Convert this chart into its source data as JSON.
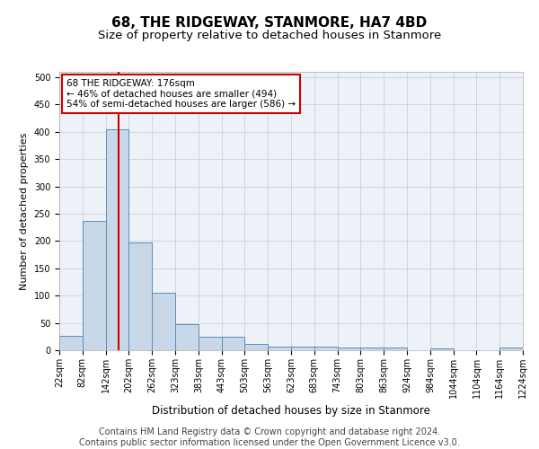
{
  "title": "68, THE RIDGEWAY, STANMORE, HA7 4BD",
  "subtitle": "Size of property relative to detached houses in Stanmore",
  "xlabel": "Distribution of detached houses by size in Stanmore",
  "ylabel": "Number of detached properties",
  "bar_color": "#c8d8e8",
  "bar_edge_color": "#5b8db8",
  "background_color": "#edf2f8",
  "grid_color": "#c8c8d0",
  "red_line_color": "#cc0000",
  "annotation_text_line1": "68 THE RIDGEWAY: 176sqm",
  "annotation_text_line2": "← 46% of detached houses are smaller (494)",
  "annotation_text_line3": "54% of semi-detached houses are larger (586) →",
  "red_line_x": 176,
  "bin_edges": [
    22,
    82,
    142,
    202,
    262,
    323,
    383,
    443,
    503,
    563,
    623,
    683,
    743,
    803,
    863,
    924,
    984,
    1044,
    1104,
    1164,
    1224
  ],
  "bin_heights": [
    27,
    237,
    405,
    198,
    105,
    48,
    25,
    25,
    12,
    7,
    7,
    7,
    5,
    5,
    5,
    0,
    4,
    0,
    0,
    5
  ],
  "ylim": [
    0,
    510
  ],
  "yticks": [
    0,
    50,
    100,
    150,
    200,
    250,
    300,
    350,
    400,
    450,
    500
  ],
  "footer_text": "Contains HM Land Registry data © Crown copyright and database right 2024.\nContains public sector information licensed under the Open Government Licence v3.0.",
  "title_fontsize": 11,
  "subtitle_fontsize": 9.5,
  "ylabel_fontsize": 8,
  "xlabel_fontsize": 8.5,
  "footer_fontsize": 7,
  "tick_fontsize": 7,
  "annotation_fontsize": 7.5
}
